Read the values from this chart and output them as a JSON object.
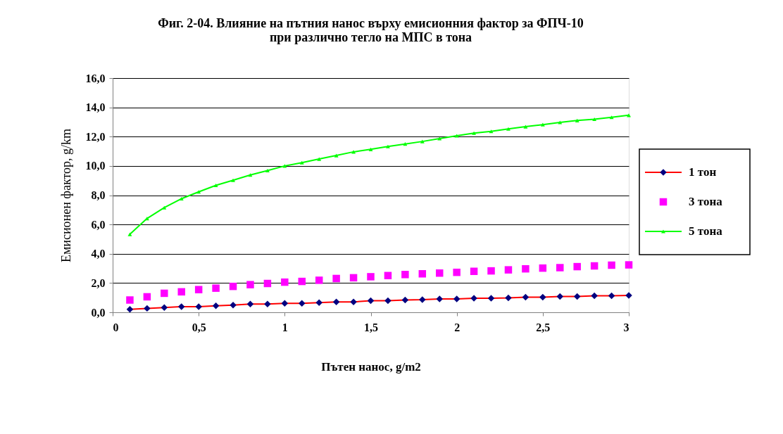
{
  "chart_data": {
    "type": "line",
    "title": [
      "Фиг. 2-04. Влияние на пътния нанос върху  емисионния фактор за ФПЧ-10",
      "при различно тегло на МПС в тона"
    ],
    "xlabel": "Пътен нанос, g/m2",
    "ylabel": "Емисионен фактор, g/km",
    "x": [
      0.1,
      0.2,
      0.3,
      0.4,
      0.5,
      0.6,
      0.7,
      0.8,
      0.9,
      1.0,
      1.1,
      1.2,
      1.3,
      1.4,
      1.5,
      1.6,
      1.7,
      1.8,
      1.9,
      2.0,
      2.1,
      2.2,
      2.3,
      2.4,
      2.5,
      2.6,
      2.7,
      2.8,
      2.9,
      3.0
    ],
    "series": [
      {
        "name": "1 тон",
        "color": "#ff0000",
        "colors": [
          "#000080",
          "#000080",
          "#000080",
          "#000080",
          "#000080",
          "#000080",
          "#000080",
          "#000080",
          "#000080",
          "#000080",
          "#000080",
          "#000080",
          "#000080",
          "#000080",
          "#000080",
          "#000080",
          "#000080",
          "#000080",
          "#000080",
          "#000080",
          "#000080",
          "#000080",
          "#000080",
          "#000080",
          "#000080",
          "#000080",
          "#000080",
          "#000080",
          "#000080",
          "#000080"
        ],
        "marker": "diamond",
        "values": [
          0.2,
          0.27,
          0.32,
          0.39,
          0.39,
          0.44,
          0.49,
          0.57,
          0.57,
          0.61,
          0.61,
          0.66,
          0.71,
          0.71,
          0.79,
          0.79,
          0.84,
          0.86,
          0.91,
          0.91,
          0.96,
          0.96,
          0.98,
          1.03,
          1.03,
          1.08,
          1.08,
          1.13,
          1.13,
          1.15
        ]
      },
      {
        "name": "3 тона",
        "type": "scatter",
        "color": "#ff00ff",
        "marker": "square",
        "values": [
          0.84,
          1.06,
          1.3,
          1.4,
          1.55,
          1.65,
          1.77,
          1.89,
          1.97,
          2.06,
          2.11,
          2.19,
          2.31,
          2.36,
          2.43,
          2.51,
          2.58,
          2.63,
          2.68,
          2.73,
          2.8,
          2.83,
          2.9,
          2.97,
          3.02,
          3.05,
          3.12,
          3.17,
          3.22,
          3.24
        ]
      },
      {
        "name": "5 тона",
        "color": "#00ff00",
        "marker": "triangle",
        "values": [
          5.33,
          6.41,
          7.15,
          7.76,
          8.23,
          8.67,
          9.02,
          9.38,
          9.68,
          10.0,
          10.22,
          10.47,
          10.71,
          10.96,
          11.13,
          11.33,
          11.5,
          11.67,
          11.87,
          12.06,
          12.24,
          12.36,
          12.53,
          12.68,
          12.82,
          12.97,
          13.1,
          13.19,
          13.32,
          13.46
        ]
      }
    ],
    "xlim": [
      0,
      3
    ],
    "xticks": [
      0,
      {
        "value": 0.5,
        "label": "0,5"
      },
      1,
      {
        "value": 1.5,
        "label": "1,5"
      },
      2,
      {
        "value": 2.5,
        "label": "2,5"
      },
      3
    ],
    "ylim": [
      0,
      16
    ],
    "yticks": [
      {
        "value": 0,
        "label": "0,0"
      },
      {
        "value": 2,
        "label": "2,0"
      },
      {
        "value": 4,
        "label": "4,0"
      },
      {
        "value": 6,
        "label": "6,0"
      },
      {
        "value": 8,
        "label": "8,0"
      },
      {
        "value": 10,
        "label": "10,0"
      },
      {
        "value": 12,
        "label": "12,0"
      },
      {
        "value": 14,
        "label": "14,0"
      },
      {
        "value": 16,
        "label": "16,0"
      }
    ],
    "grid": "y",
    "legend": "right"
  }
}
